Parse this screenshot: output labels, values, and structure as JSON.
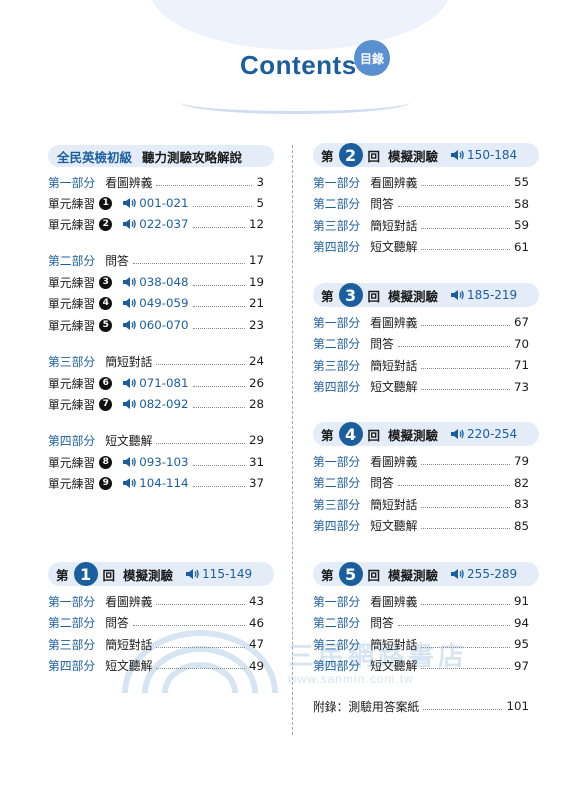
{
  "header": {
    "title": "Contents",
    "badge": "目錄"
  },
  "left": {
    "banner": {
      "title": "全民英檢初級",
      "subtitle": "聽力測驗攻略解說"
    },
    "rows": [
      {
        "kind": "part",
        "label": "第一部分",
        "title": "看圖辨義",
        "page": "3"
      },
      {
        "kind": "unit",
        "label": "單元練習",
        "num": "1",
        "audio": "001-021",
        "page": "5"
      },
      {
        "kind": "unit",
        "label": "單元練習",
        "num": "2",
        "audio": "022-037",
        "page": "12"
      },
      {
        "kind": "part",
        "label": "第二部分",
        "title": "問答",
        "page": "17"
      },
      {
        "kind": "unit",
        "label": "單元練習",
        "num": "3",
        "audio": "038-048",
        "page": "19"
      },
      {
        "kind": "unit",
        "label": "單元練習",
        "num": "4",
        "audio": "049-059",
        "page": "21"
      },
      {
        "kind": "unit",
        "label": "單元練習",
        "num": "5",
        "audio": "060-070",
        "page": "23"
      },
      {
        "kind": "part",
        "label": "第三部分",
        "title": "簡短對話",
        "page": "24"
      },
      {
        "kind": "unit",
        "label": "單元練習",
        "num": "6",
        "audio": "071-081",
        "page": "26"
      },
      {
        "kind": "unit",
        "label": "單元練習",
        "num": "7",
        "audio": "082-092",
        "page": "28"
      },
      {
        "kind": "part",
        "label": "第四部分",
        "title": "短文聽解",
        "page": "29"
      },
      {
        "kind": "unit",
        "label": "單元練習",
        "num": "8",
        "audio": "093-103",
        "page": "31"
      },
      {
        "kind": "unit",
        "label": "單元練習",
        "num": "9",
        "audio": "104-114",
        "page": "37"
      }
    ]
  },
  "tests": [
    {
      "pre": "第",
      "num": "1",
      "post": "回",
      "name": "模擬測驗",
      "audio": "115-149",
      "rows": [
        {
          "label": "第一部分",
          "title": "看圖辨義",
          "page": "43"
        },
        {
          "label": "第二部分",
          "title": "問答",
          "page": "46"
        },
        {
          "label": "第三部分",
          "title": "簡短對話",
          "page": "47"
        },
        {
          "label": "第四部分",
          "title": "短文聽解",
          "page": "49"
        }
      ]
    },
    {
      "pre": "第",
      "num": "2",
      "post": "回",
      "name": "模擬測驗",
      "audio": "150-184",
      "rows": [
        {
          "label": "第一部分",
          "title": "看圖辨義",
          "page": "55"
        },
        {
          "label": "第二部分",
          "title": "問答",
          "page": "58"
        },
        {
          "label": "第三部分",
          "title": "簡短對話",
          "page": "59"
        },
        {
          "label": "第四部分",
          "title": "短文聽解",
          "page": "61"
        }
      ]
    },
    {
      "pre": "第",
      "num": "3",
      "post": "回",
      "name": "模擬測驗",
      "audio": "185-219",
      "rows": [
        {
          "label": "第一部分",
          "title": "看圖辨義",
          "page": "67"
        },
        {
          "label": "第二部分",
          "title": "問答",
          "page": "70"
        },
        {
          "label": "第三部分",
          "title": "簡短對話",
          "page": "71"
        },
        {
          "label": "第四部分",
          "title": "短文聽解",
          "page": "73"
        }
      ]
    },
    {
      "pre": "第",
      "num": "4",
      "post": "回",
      "name": "模擬測驗",
      "audio": "220-254",
      "rows": [
        {
          "label": "第一部分",
          "title": "看圖辨義",
          "page": "79"
        },
        {
          "label": "第二部分",
          "title": "問答",
          "page": "82"
        },
        {
          "label": "第三部分",
          "title": "簡短對話",
          "page": "83"
        },
        {
          "label": "第四部分",
          "title": "短文聽解",
          "page": "85"
        }
      ]
    },
    {
      "pre": "第",
      "num": "5",
      "post": "回",
      "name": "模擬測驗",
      "audio": "255-289",
      "rows": [
        {
          "label": "第一部分",
          "title": "看圖辨義",
          "page": "91"
        },
        {
          "label": "第二部分",
          "title": "問答",
          "page": "94"
        },
        {
          "label": "第三部分",
          "title": "簡短對話",
          "page": "95"
        },
        {
          "label": "第四部分",
          "title": "短文聽解",
          "page": "97"
        }
      ]
    }
  ],
  "appendix": {
    "title": "附錄：測驗用答案紙",
    "page": "101"
  },
  "watermark": {
    "name": "三民網路書店",
    "url": "www.sanmin.com.tw"
  },
  "icons": {
    "audio": "speaker-icon"
  },
  "colors": {
    "accent": "#1b5e9e",
    "banner": "#e4ecf8",
    "badge": "#5a8fd0"
  }
}
